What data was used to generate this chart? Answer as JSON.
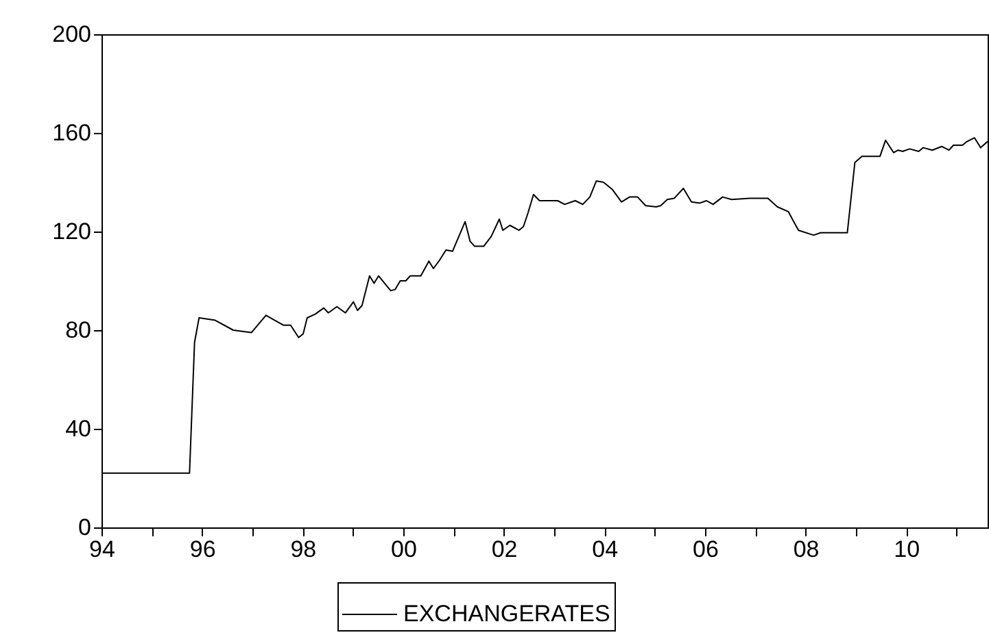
{
  "chart_data": {
    "type": "line",
    "legend": "bottom",
    "marker": "none",
    "line_style": "solid",
    "grid": false,
    "xlim": [
      1994,
      2011.62
    ],
    "ylim": [
      0,
      200
    ],
    "yticks": [
      0,
      40,
      80,
      120,
      160,
      200
    ],
    "xticks": [
      {
        "value": 1994,
        "label": "94"
      },
      {
        "value": 1995,
        "label": null
      },
      {
        "value": 1996,
        "label": "96"
      },
      {
        "value": 1997,
        "label": null
      },
      {
        "value": 1998,
        "label": "98"
      },
      {
        "value": 1999,
        "label": null
      },
      {
        "value": 2000,
        "label": "00"
      },
      {
        "value": 2001,
        "label": null
      },
      {
        "value": 2002,
        "label": "02"
      },
      {
        "value": 2003,
        "label": null
      },
      {
        "value": 2004,
        "label": "04"
      },
      {
        "value": 2005,
        "label": null
      },
      {
        "value": 2006,
        "label": "06"
      },
      {
        "value": 2007,
        "label": null
      },
      {
        "value": 2008,
        "label": "08"
      },
      {
        "value": 2009,
        "label": null
      },
      {
        "value": 2010,
        "label": "10"
      },
      {
        "value": 2011,
        "label": null
      }
    ],
    "series": [
      {
        "name": "EXCHANGERATES",
        "color": "#000000",
        "x": [
          1994.0,
          1995.75,
          1995.85,
          1995.94,
          1996.26,
          1996.62,
          1996.98,
          1997.27,
          1997.62,
          1997.76,
          1997.92,
          1998.01,
          1998.09,
          1998.25,
          1998.42,
          1998.51,
          1998.68,
          1998.85,
          1999.01,
          1999.09,
          1999.18,
          1999.33,
          1999.42,
          1999.51,
          1999.75,
          1999.84,
          1999.94,
          2000.05,
          2000.14,
          2000.35,
          2000.51,
          2000.6,
          2000.71,
          2000.85,
          2000.98,
          2001.23,
          2001.33,
          2001.42,
          2001.6,
          2001.75,
          2001.91,
          2001.98,
          2002.12,
          2002.3,
          2002.39,
          2002.48,
          2002.59,
          2002.71,
          2003.07,
          2003.21,
          2003.42,
          2003.57,
          2003.71,
          2003.84,
          2003.98,
          2004.16,
          2004.34,
          2004.5,
          2004.66,
          2004.82,
          2005.03,
          2005.12,
          2005.25,
          2005.39,
          2005.57,
          2005.73,
          2005.89,
          2006.03,
          2006.16,
          2006.35,
          2006.53,
          2006.89,
          2007.25,
          2007.44,
          2007.66,
          2007.75,
          2007.86,
          2008.16,
          2008.3,
          2008.62,
          2008.83,
          2008.98,
          2009.12,
          2009.48,
          2009.59,
          2009.75,
          2009.84,
          2009.93,
          2010.07,
          2010.25,
          2010.34,
          2010.52,
          2010.71,
          2010.85,
          2010.94,
          2011.12,
          2011.21,
          2011.36,
          2011.48,
          2011.62
        ],
        "values": [
          22,
          22,
          75,
          85,
          84,
          80,
          79,
          86,
          82,
          82,
          77,
          78.5,
          85,
          86.5,
          89,
          87,
          89.5,
          87,
          91.5,
          88,
          90,
          102,
          99,
          102,
          96,
          96.5,
          100,
          100,
          102,
          102,
          108,
          105,
          108,
          112.5,
          112,
          124,
          116,
          114,
          114,
          118,
          125,
          120.5,
          122.5,
          120.5,
          122,
          127.5,
          135,
          132.5,
          132.5,
          131,
          132.5,
          131,
          134,
          140.5,
          140,
          137,
          132,
          134,
          134,
          130.5,
          130,
          130.5,
          133,
          133.5,
          137.5,
          132,
          131.5,
          132.5,
          131,
          134,
          133,
          133.5,
          133.5,
          130,
          128,
          124.5,
          120.5,
          118.5,
          119.5,
          119.5,
          119.5,
          148,
          150.5,
          150.5,
          157,
          152,
          153,
          152.5,
          153.5,
          152.5,
          154,
          153,
          154.5,
          153,
          155,
          155,
          156.5,
          158,
          154,
          156.5
        ]
      }
    ]
  }
}
